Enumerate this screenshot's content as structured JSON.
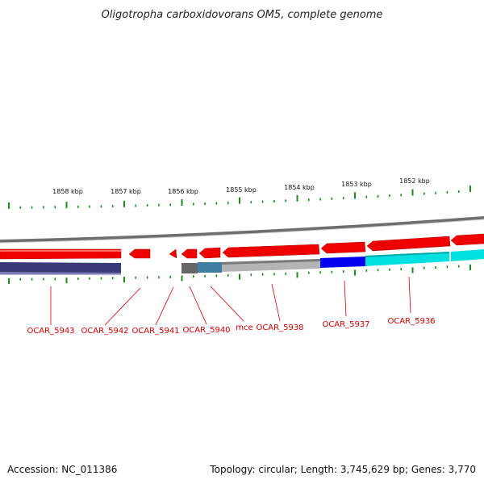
{
  "title": "Oligotropha carboxidovorans OM5, complete genome",
  "footer": {
    "accession": "Accession: NC_011386",
    "summary": "Topology: circular; Length: 3,745,629 bp; Genes: 3,770"
  },
  "scale_labels": [
    "1858 kbp",
    "1857 kbp",
    "1856 kbp",
    "1855 kbp",
    "1854 kbp",
    "1853 kbp",
    "1852 kbp"
  ],
  "genes": [
    {
      "label": "OCAR_5943"
    },
    {
      "label": "OCAR_5942"
    },
    {
      "label": "OCAR_5941"
    },
    {
      "label": "OCAR_5940"
    },
    {
      "label": "mce"
    },
    {
      "label": "OCAR_5938"
    },
    {
      "label": "OCAR_5937"
    },
    {
      "label": "OCAR_5936"
    }
  ],
  "colors": {
    "cds": "#ee0000",
    "tick": "#1e8a1e",
    "label": "#d00000",
    "backbone": "#8c8c8c",
    "cog_purple": "#3a3a78",
    "cog_gray": "#666666",
    "cog_steel": "#3f7fa6",
    "cog_lightgray": "#b4b4b4",
    "cog_blue": "#0000ee",
    "cog_cyan": "#00e0e0"
  }
}
